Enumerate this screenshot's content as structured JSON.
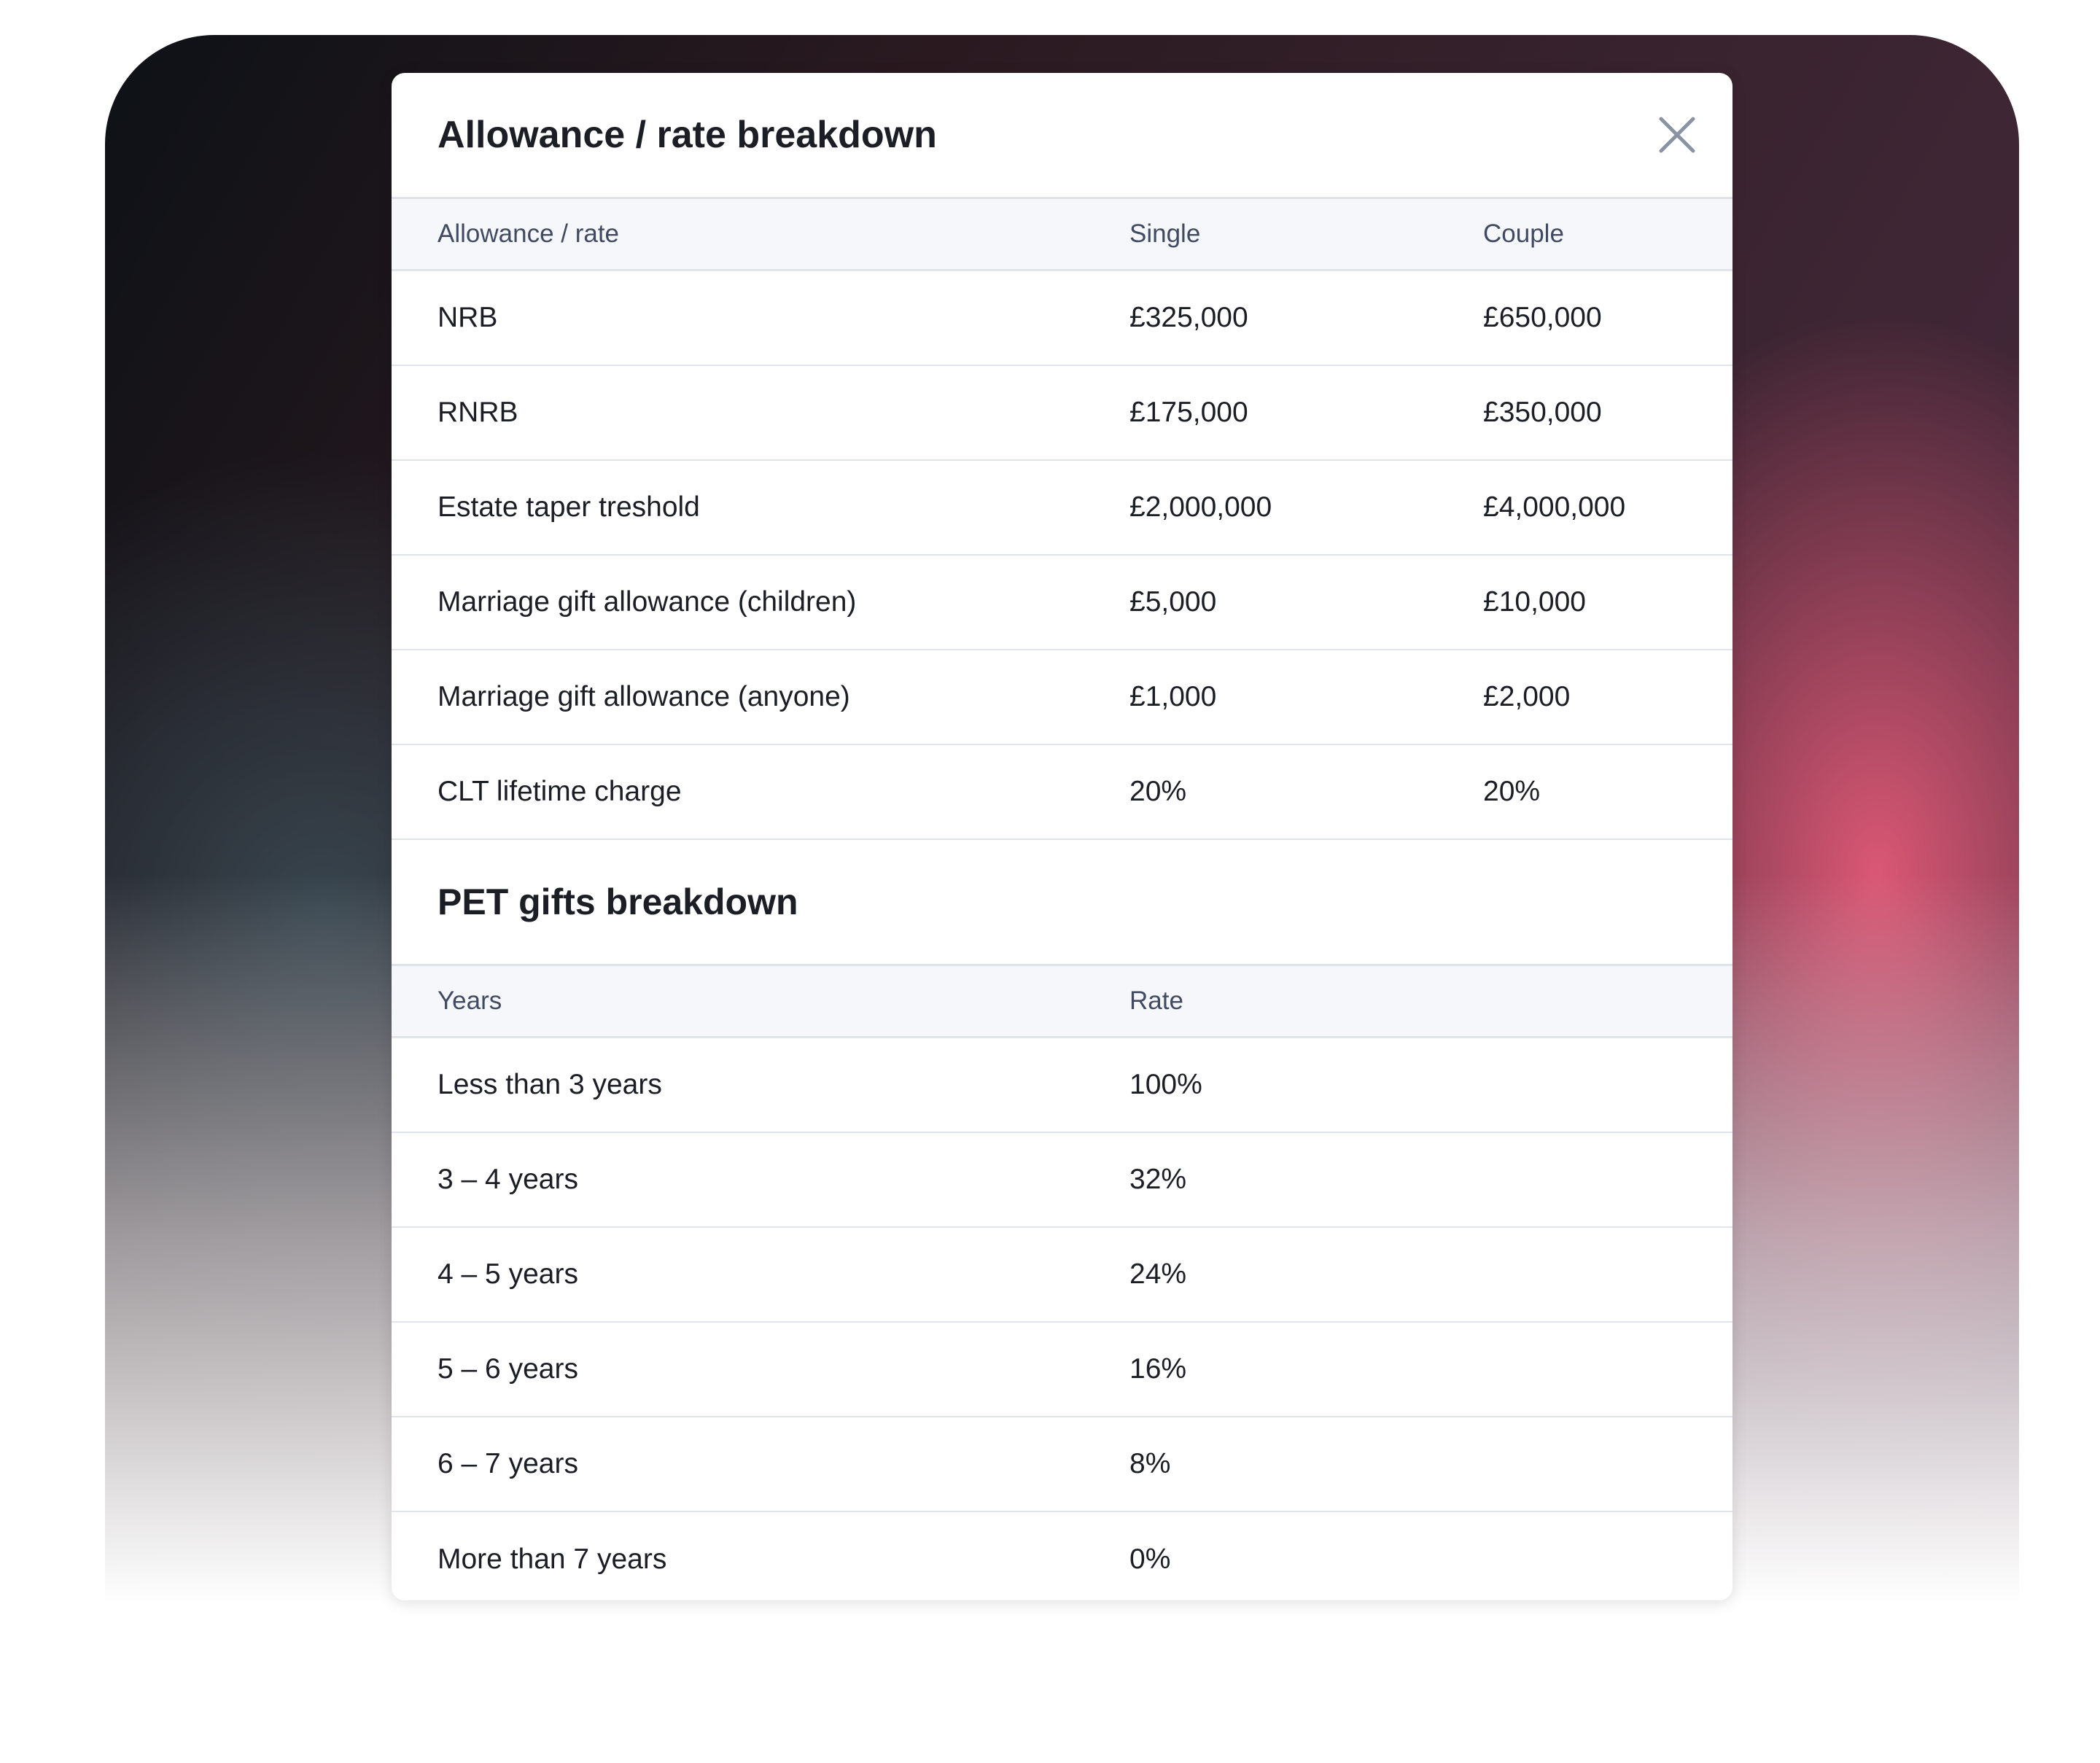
{
  "modal": {
    "title": "Allowance / rate breakdown",
    "close_icon": "close-x-icon",
    "allowance_table": {
      "headers": [
        "Allowance / rate",
        "Single",
        "Couple"
      ],
      "rows": [
        [
          "NRB",
          "£325,000",
          "£650,000"
        ],
        [
          "RNRB",
          "£175,000",
          "£350,000"
        ],
        [
          "Estate taper treshold",
          "£2,000,000",
          "£4,000,000"
        ],
        [
          "Marriage gift allowance (children)",
          "£5,000",
          "£10,000"
        ],
        [
          "Marriage gift allowance (anyone)",
          "£1,000",
          "£2,000"
        ],
        [
          "CLT lifetime charge",
          "20%",
          "20%"
        ]
      ]
    },
    "pet_section": {
      "title": "PET gifts breakdown",
      "headers": [
        "Years",
        "Rate"
      ],
      "rows": [
        [
          "Less than 3 years",
          "100%"
        ],
        [
          "3 – 4 years",
          "32%"
        ],
        [
          "4 – 5 years",
          "24%"
        ],
        [
          "5 – 6 years",
          "16%"
        ],
        [
          "6 – 7 years",
          "8%"
        ],
        [
          "More than 7 years",
          "0%"
        ]
      ]
    }
  }
}
